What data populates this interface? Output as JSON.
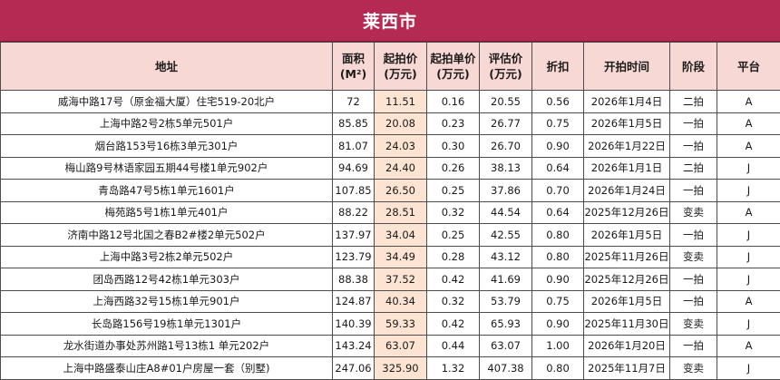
{
  "title": "莱西市",
  "headers": {
    "address": "地址",
    "area_line1": "面积",
    "area_line2": "(M²)",
    "start_price_line1": "起拍价",
    "start_price_line2": "(万元)",
    "unit_price_line1": "起拍单价",
    "unit_price_line2": "(万元)",
    "appraisal_line1": "评估价",
    "appraisal_line2": "(万元)",
    "discount": "折扣",
    "start_time": "开拍时间",
    "stage": "阶段",
    "platform": "平台"
  },
  "rows": [
    {
      "address": "威海中路17号（原金福大厦）住宅519-20北户",
      "area": "72",
      "start_price": "11.51",
      "unit_price": "0.16",
      "appraisal": "20.55",
      "discount": "0.56",
      "start_time": "2026年1月4日",
      "stage": "二拍",
      "platform": "A"
    },
    {
      "address": "上海中路2号2栋5单元501户",
      "area": "85.85",
      "start_price": "20.08",
      "unit_price": "0.23",
      "appraisal": "26.77",
      "discount": "0.75",
      "start_time": "2026年1月5日",
      "stage": "一拍",
      "platform": "A"
    },
    {
      "address": "烟台路153号16栋3单元301户",
      "area": "81.07",
      "start_price": "24.03",
      "unit_price": "0.30",
      "appraisal": "26.70",
      "discount": "0.90",
      "start_time": "2026年1月22日",
      "stage": "一拍",
      "platform": "A"
    },
    {
      "address": "梅山路9号林语家园五期44号楼1单元902户",
      "area": "94.69",
      "start_price": "24.40",
      "unit_price": "0.26",
      "appraisal": "38.13",
      "discount": "0.64",
      "start_time": "2026年1月1日",
      "stage": "二拍",
      "platform": "J"
    },
    {
      "address": "青岛路47号5栋1单元1601户",
      "area": "107.85",
      "start_price": "26.50",
      "unit_price": "0.25",
      "appraisal": "37.86",
      "discount": "0.70",
      "start_time": "2026年1月24日",
      "stage": "一拍",
      "platform": "J"
    },
    {
      "address": "梅苑路5号1栋1单元401户",
      "area": "88.22",
      "start_price": "28.51",
      "unit_price": "0.32",
      "appraisal": "44.54",
      "discount": "0.64",
      "start_time": "2025年12月26日",
      "stage": "变卖",
      "platform": "A"
    },
    {
      "address": "济南中路12号北国之春B2#楼2单元502户",
      "area": "137.97",
      "start_price": "34.04",
      "unit_price": "0.25",
      "appraisal": "42.55",
      "discount": "0.80",
      "start_time": "2026年1月5日",
      "stage": "一拍",
      "platform": "J"
    },
    {
      "address": "上海中路3号2栋2单元502户",
      "area": "123.79",
      "start_price": "34.49",
      "unit_price": "0.28",
      "appraisal": "43.12",
      "discount": "0.80",
      "start_time": "2025年11月26日",
      "stage": "变卖",
      "platform": "J"
    },
    {
      "address": "团岛西路12号42栋1单元303户",
      "area": "88.38",
      "start_price": "37.52",
      "unit_price": "0.42",
      "appraisal": "41.69",
      "discount": "0.90",
      "start_time": "2025年12月26日",
      "stage": "一拍",
      "platform": "J"
    },
    {
      "address": "上海西路32号15栋1单元901户",
      "area": "124.87",
      "start_price": "40.34",
      "unit_price": "0.32",
      "appraisal": "53.79",
      "discount": "0.75",
      "start_time": "2026年1月5日",
      "stage": "一拍",
      "platform": "A"
    },
    {
      "address": "长岛路156号19栋1单元1301户",
      "area": "140.39",
      "start_price": "59.33",
      "unit_price": "0.42",
      "appraisal": "65.93",
      "discount": "0.90",
      "start_time": "2025年11月30日",
      "stage": "变卖",
      "platform": "J"
    },
    {
      "address": "龙水街道办事处苏州路1号13栋1 单元202户",
      "area": "143.24",
      "start_price": "63.07",
      "unit_price": "0.44",
      "appraisal": "63.07",
      "discount": "1.00",
      "start_time": "2026年1月20日",
      "stage": "一拍",
      "platform": "A"
    },
    {
      "address": "上海中路盛泰山庄A8#01户房屋一套（别墅)",
      "area": "247.06",
      "start_price": "325.90",
      "unit_price": "1.32",
      "appraisal": "407.38",
      "discount": "0.80",
      "start_time": "2025年11月7日",
      "stage": "变卖",
      "platform": "J"
    }
  ]
}
